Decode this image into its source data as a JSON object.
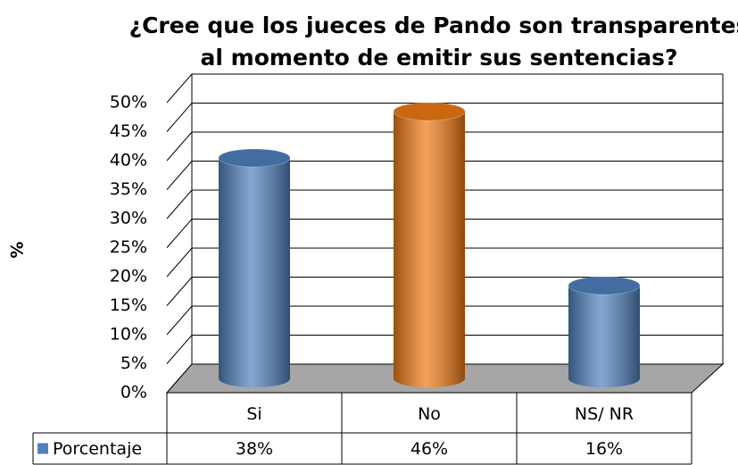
{
  "chart_data": {
    "type": "bar3d",
    "title": [
      "¿Cree que los jueces  de Pando son  transparentes",
      "al momento de emitir sus sentencias?"
    ],
    "y_label": "%",
    "categories": [
      "Si",
      "No",
      "NS/ NR"
    ],
    "series": [
      {
        "name": "Porcentaje",
        "color": "#4f81bd",
        "point_colors": [
          "#4f81bd",
          "#f07a14",
          "#4f81bd"
        ],
        "values": [
          38,
          46,
          16
        ],
        "value_labels": [
          "38%",
          "46%",
          "16%"
        ]
      }
    ],
    "ylim": [
      0,
      50
    ],
    "yticks": [
      {
        "value": 0,
        "label": "0%"
      },
      {
        "value": 5,
        "label": "5%"
      },
      {
        "value": 10,
        "label": "10%"
      },
      {
        "value": 15,
        "label": "15%"
      },
      {
        "value": 20,
        "label": "20%"
      },
      {
        "value": 25,
        "label": "25%"
      },
      {
        "value": 30,
        "label": "30%"
      },
      {
        "value": 35,
        "label": "35%"
      },
      {
        "value": 40,
        "label": "40%"
      },
      {
        "value": 45,
        "label": "45%"
      },
      {
        "value": 50,
        "label": "50%"
      }
    ],
    "grid": true,
    "data_table": true
  }
}
